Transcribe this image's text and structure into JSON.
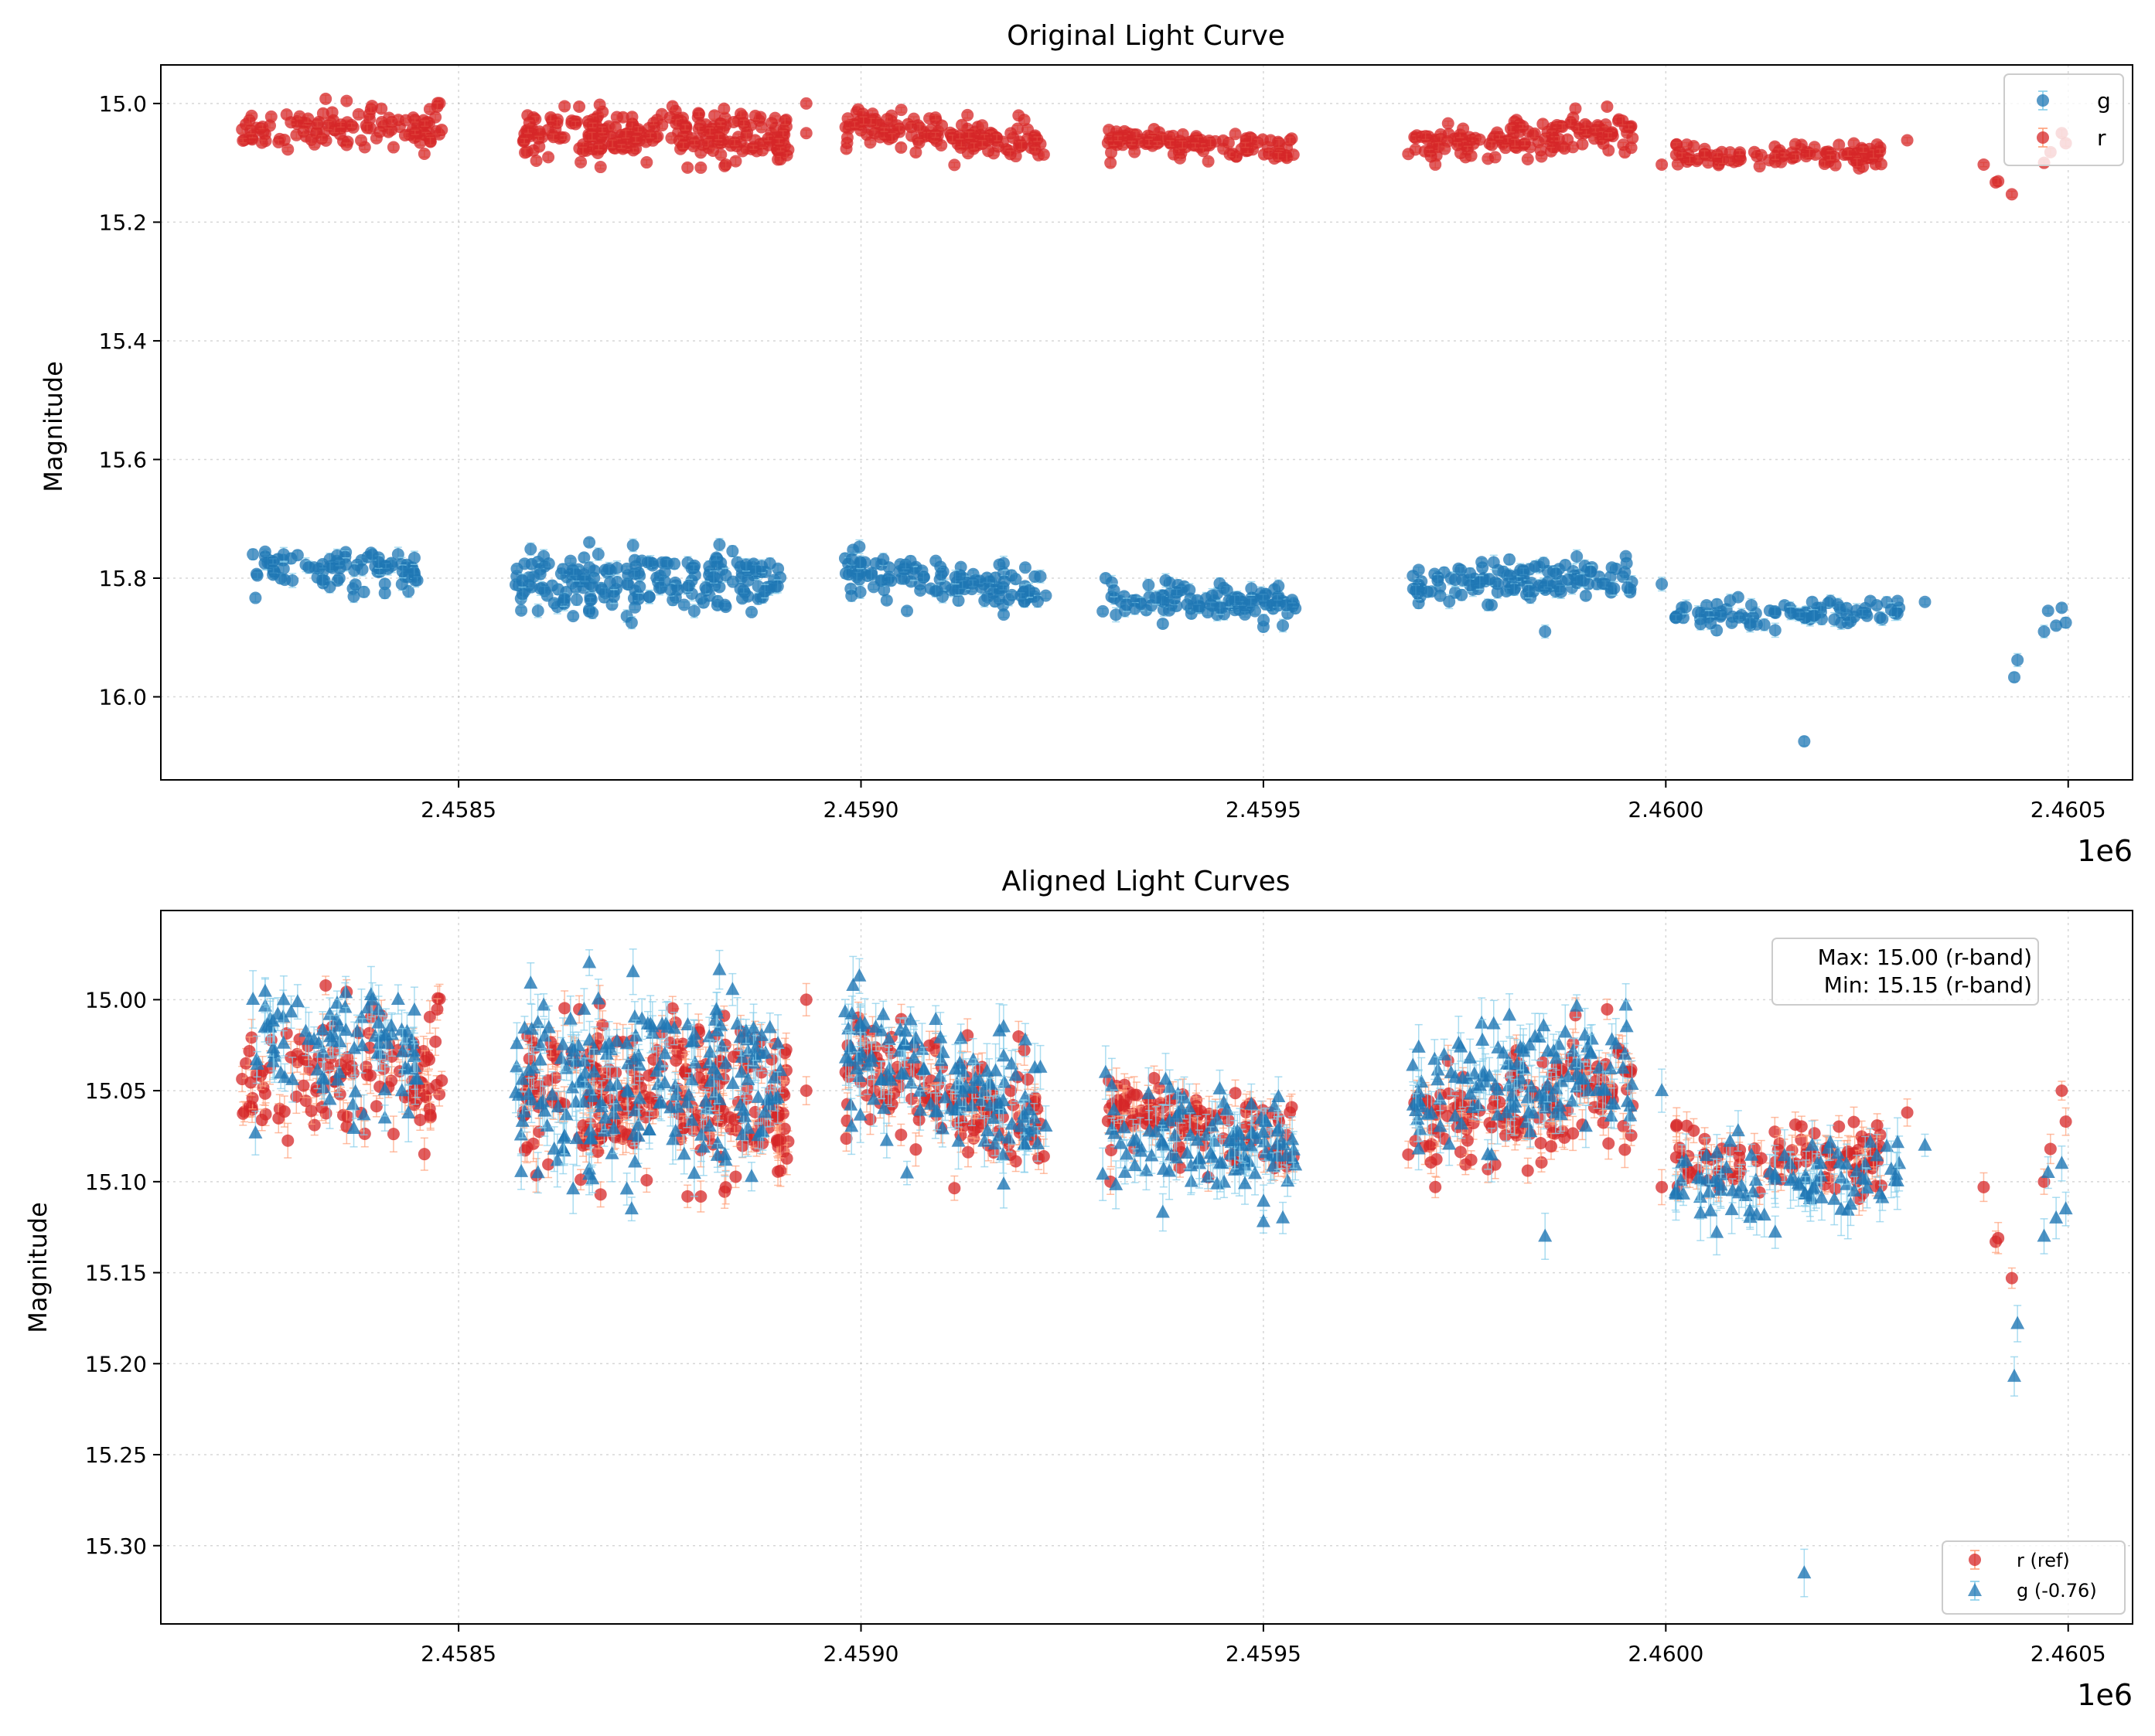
{
  "chart_data": [
    {
      "type": "scatter",
      "title": "Original Light Curve",
      "xlabel": "",
      "ylabel": "Magnitude",
      "x_offset_label": "1e6",
      "x_tick_labels": [
        "2.4585",
        "2.4590",
        "2.4595",
        "2.4600",
        "2.4605"
      ],
      "x_ticks": [
        2458500,
        2459000,
        2459500,
        2460000,
        2460500
      ],
      "y_tick_labels": [
        "15.0",
        "15.2",
        "15.4",
        "15.6",
        "15.8",
        "16.0"
      ],
      "y_ticks": [
        15.0,
        15.2,
        15.4,
        15.6,
        15.8,
        16.0
      ],
      "xlim": [
        2458130,
        2460580
      ],
      "ylim": [
        16.14,
        14.935
      ],
      "y_inverted": true,
      "grid": true,
      "legend_position": "upper-right",
      "legend": [
        "g",
        "r"
      ],
      "colors": {
        "g": "#1f77b4",
        "r": "#d62728",
        "g_err": "#87ceeb",
        "r_err": "#ffa07a"
      },
      "series": [
        {
          "name": "g",
          "marker": "circle",
          "clusters": [
            {
              "x_start": 2458240,
              "x_end": 2458450,
              "base": 15.785,
              "slope": 0.0,
              "spread": 0.02,
              "n": 90
            },
            {
              "x_start": 2458570,
              "x_end": 2458900,
              "base": 15.805,
              "slope": 0.0,
              "spread": 0.025,
              "n": 200
            },
            {
              "x_start": 2458980,
              "x_end": 2459230,
              "base": 15.79,
              "slope": 0.03,
              "spread": 0.018,
              "n": 130
            },
            {
              "x_start": 2459300,
              "x_end": 2459540,
              "base": 15.83,
              "slope": 0.01,
              "spread": 0.015,
              "n": 110
            },
            {
              "x_start": 2459680,
              "x_end": 2459960,
              "base": 15.815,
              "slope": -0.02,
              "spread": 0.018,
              "n": 130
            },
            {
              "x_start": 2460010,
              "x_end": 2460290,
              "base": 15.86,
              "slope": 0.0,
              "spread": 0.012,
              "n": 90
            }
          ],
          "extra_points": [
            {
              "x": 2458715,
              "y": 15.875
            },
            {
              "x": 2459330,
              "y": 15.845
            },
            {
              "x": 2459500,
              "y": 15.882
            },
            {
              "x": 2459850,
              "y": 15.89
            },
            {
              "x": 2459995,
              "y": 15.81
            },
            {
              "x": 2460172,
              "y": 16.075
            },
            {
              "x": 2460322,
              "y": 15.84
            },
            {
              "x": 2460433,
              "y": 15.967
            },
            {
              "x": 2460437,
              "y": 15.938
            },
            {
              "x": 2460470,
              "y": 15.89
            },
            {
              "x": 2460475,
              "y": 15.855
            },
            {
              "x": 2460485,
              "y": 15.88
            },
            {
              "x": 2460492,
              "y": 15.85
            },
            {
              "x": 2460497,
              "y": 15.875
            }
          ]
        },
        {
          "name": "r",
          "marker": "circle",
          "clusters": [
            {
              "x_start": 2458230,
              "x_end": 2458480,
              "base": 15.04,
              "slope": 0.0,
              "spread": 0.018,
              "n": 120
            },
            {
              "x_start": 2458580,
              "x_end": 2458910,
              "base": 15.052,
              "slope": 0.0,
              "spread": 0.022,
              "n": 260
            },
            {
              "x_start": 2458980,
              "x_end": 2459230,
              "base": 15.035,
              "slope": 0.03,
              "spread": 0.015,
              "n": 150
            },
            {
              "x_start": 2459305,
              "x_end": 2459540,
              "base": 15.06,
              "slope": 0.02,
              "spread": 0.01,
              "n": 120
            },
            {
              "x_start": 2459680,
              "x_end": 2459960,
              "base": 15.07,
              "slope": -0.02,
              "spread": 0.015,
              "n": 150
            },
            {
              "x_start": 2460010,
              "x_end": 2460270,
              "base": 15.085,
              "slope": 0.005,
              "spread": 0.01,
              "n": 110
            }
          ],
          "extra_points": [
            {
              "x": 2458932,
              "y": 15.0
            },
            {
              "x": 2458932,
              "y": 15.05
            },
            {
              "x": 2459310,
              "y": 15.1
            },
            {
              "x": 2459995,
              "y": 15.103
            },
            {
              "x": 2460300,
              "y": 15.062
            },
            {
              "x": 2460395,
              "y": 15.103
            },
            {
              "x": 2460410,
              "y": 15.133
            },
            {
              "x": 2460413,
              "y": 15.131
            },
            {
              "x": 2460430,
              "y": 15.153
            },
            {
              "x": 2460470,
              "y": 15.1
            },
            {
              "x": 2460478,
              "y": 15.082
            },
            {
              "x": 2460492,
              "y": 15.05
            },
            {
              "x": 2460497,
              "y": 15.067
            }
          ]
        }
      ]
    },
    {
      "type": "scatter",
      "title": "Aligned Light Curves",
      "xlabel": "",
      "ylabel": "Magnitude",
      "x_offset_label": "1e6",
      "x_tick_labels": [
        "2.4585",
        "2.4590",
        "2.4595",
        "2.4600",
        "2.4605"
      ],
      "x_ticks": [
        2458500,
        2459000,
        2459500,
        2460000,
        2460500
      ],
      "y_tick_labels": [
        "15.00",
        "15.05",
        "15.10",
        "15.15",
        "15.20",
        "15.25",
        "15.30"
      ],
      "y_ticks": [
        15.0,
        15.05,
        15.1,
        15.15,
        15.2,
        15.25,
        15.3
      ],
      "xlim": [
        2458130,
        2460580
      ],
      "ylim": [
        15.343,
        14.951
      ],
      "y_inverted": true,
      "grid": true,
      "legend_position": "lower-right",
      "legend": [
        "r (ref)",
        "g (-0.76)"
      ],
      "annotation": [
        "Max: 15.00 (r-band)",
        "Min: 15.15 (r-band)"
      ],
      "g_offset": -0.76,
      "colors": {
        "g": "#1f77b4",
        "r": "#d62728",
        "g_err": "#87ceeb",
        "r_err": "#ffa07a"
      },
      "series": [
        {
          "name": "r (ref)",
          "marker": "circle",
          "source": "r",
          "offset": 0.0
        },
        {
          "name": "g (-0.76)",
          "marker": "triangle",
          "source": "g",
          "offset": -0.76
        }
      ]
    }
  ]
}
